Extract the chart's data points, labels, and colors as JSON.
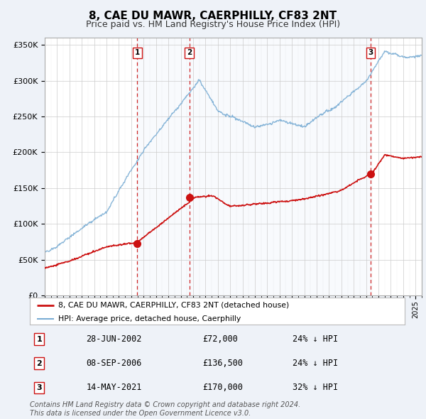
{
  "title": "8, CAE DU MAWR, CAERPHILLY, CF83 2NT",
  "subtitle": "Price paid vs. HM Land Registry's House Price Index (HPI)",
  "title_fontsize": 11,
  "subtitle_fontsize": 9,
  "ylabel_ticks": [
    "£0",
    "£50K",
    "£100K",
    "£150K",
    "£200K",
    "£250K",
    "£300K",
    "£350K"
  ],
  "ytick_values": [
    0,
    50000,
    100000,
    150000,
    200000,
    250000,
    300000,
    350000
  ],
  "ylim": [
    0,
    360000
  ],
  "xlim_start": 1995.0,
  "xlim_end": 2025.5,
  "hpi_color": "#7aadd4",
  "price_color": "#cc1111",
  "marker_color": "#cc1111",
  "shade_color": "#dce8f5",
  "background_color": "#eef2f8",
  "plot_bg_color": "#ffffff",
  "grid_color": "#cccccc",
  "legend_label_price": "8, CAE DU MAWR, CAERPHILLY, CF83 2NT (detached house)",
  "legend_label_hpi": "HPI: Average price, detached house, Caerphilly",
  "transactions": [
    {
      "num": 1,
      "date": "28-JUN-2002",
      "price": 72000,
      "pct": "24%",
      "dir": "↓",
      "x_year": 2002.49
    },
    {
      "num": 2,
      "date": "08-SEP-2006",
      "price": 136500,
      "pct": "24%",
      "dir": "↓",
      "x_year": 2006.69
    },
    {
      "num": 3,
      "date": "14-MAY-2021",
      "price": 170000,
      "pct": "32%",
      "dir": "↓",
      "x_year": 2021.37
    }
  ],
  "footer": "Contains HM Land Registry data © Crown copyright and database right 2024.\nThis data is licensed under the Open Government Licence v3.0.",
  "footer_fontsize": 7.0
}
